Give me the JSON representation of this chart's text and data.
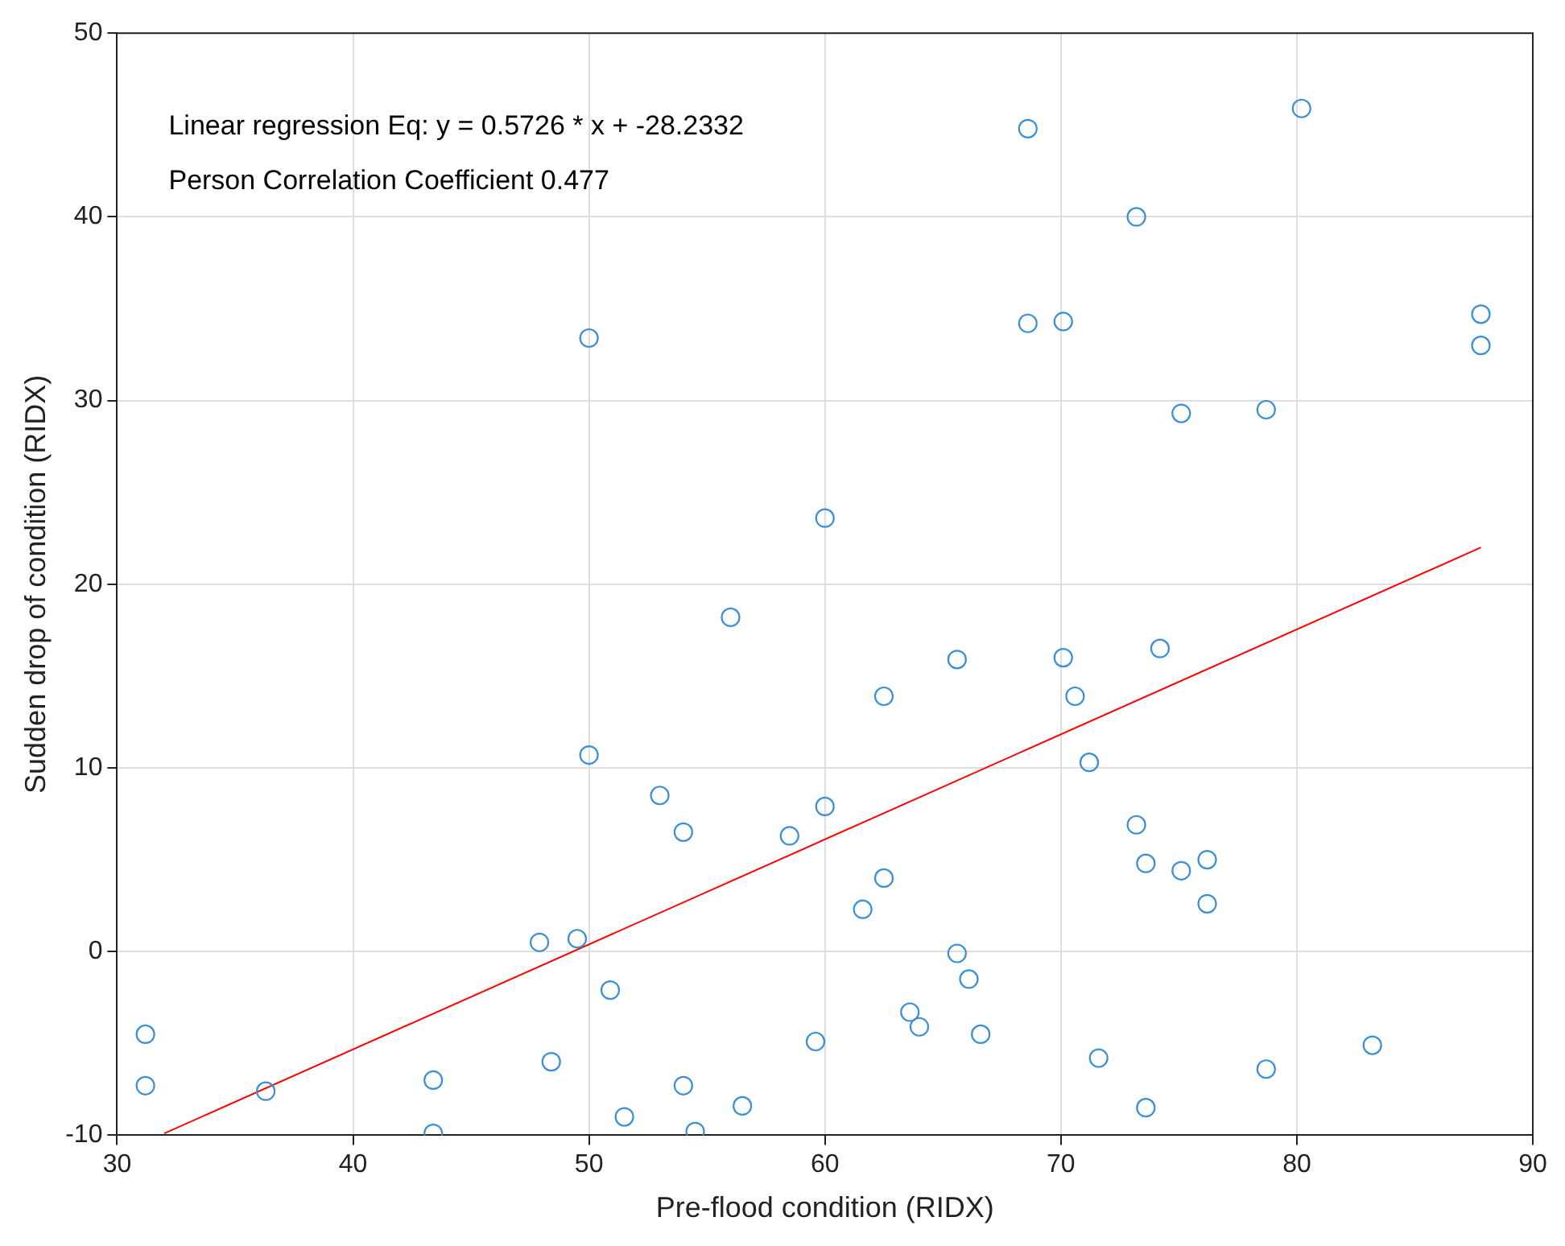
{
  "chart_data": {
    "type": "scatter",
    "xlabel": "Pre-flood condition (RIDX)",
    "ylabel": "Sudden drop of condition (RIDX)",
    "annotations": [
      "Linear regression Eq: y = 0.5726 * x + -28.2332",
      "Person Correlation Coefficient 0.477"
    ],
    "xlim": [
      30,
      90
    ],
    "xticks": [
      30,
      40,
      50,
      60,
      70,
      80,
      90
    ],
    "ylim": [
      -10,
      50
    ],
    "yticks": [
      -10,
      0,
      10,
      20,
      30,
      40,
      50
    ],
    "grid": true,
    "marker": "circle",
    "series": [
      {
        "color": "#3a8fd6",
        "x": [
          31.2,
          31.2,
          36.3,
          43.4,
          43.4,
          47.9,
          48.4,
          49.5,
          50.0,
          50.0,
          50.9,
          51.5,
          53.0,
          54.0,
          54.0,
          54.5,
          56.0,
          56.5,
          58.5,
          59.6,
          60.0,
          60.0,
          61.6,
          62.5,
          62.5,
          63.6,
          64.0,
          65.6,
          65.6,
          66.1,
          66.6,
          68.6,
          68.6,
          70.1,
          70.1,
          70.6,
          71.2,
          71.6,
          73.2,
          73.2,
          73.6,
          73.6,
          74.2,
          75.1,
          75.1,
          76.2,
          76.2,
          78.7,
          78.7,
          80.2,
          83.2,
          87.8,
          87.8
        ],
        "values": [
          -4.5,
          -7.3,
          -7.6,
          -7.0,
          -9.9,
          0.5,
          -6.0,
          0.7,
          33.4,
          10.7,
          -2.1,
          -9.0,
          8.5,
          6.5,
          -7.3,
          -9.8,
          18.2,
          -8.4,
          6.3,
          -4.9,
          23.6,
          7.9,
          2.3,
          13.9,
          4.0,
          -3.3,
          -4.1,
          -0.1,
          15.9,
          -1.5,
          -4.5,
          44.8,
          34.2,
          34.3,
          16.0,
          13.9,
          10.3,
          -5.8,
          40.0,
          6.9,
          4.8,
          -8.5,
          16.5,
          4.4,
          29.3,
          5.0,
          2.6,
          29.5,
          -6.4,
          45.9,
          -5.1,
          34.7,
          33.0
        ]
      },
      {
        "type": "line",
        "color": "#ff0000",
        "marker": "none",
        "line_style": "solid",
        "x": [
          32,
          87.8
        ],
        "values": [
          -9.9,
          22.0
        ]
      }
    ]
  }
}
